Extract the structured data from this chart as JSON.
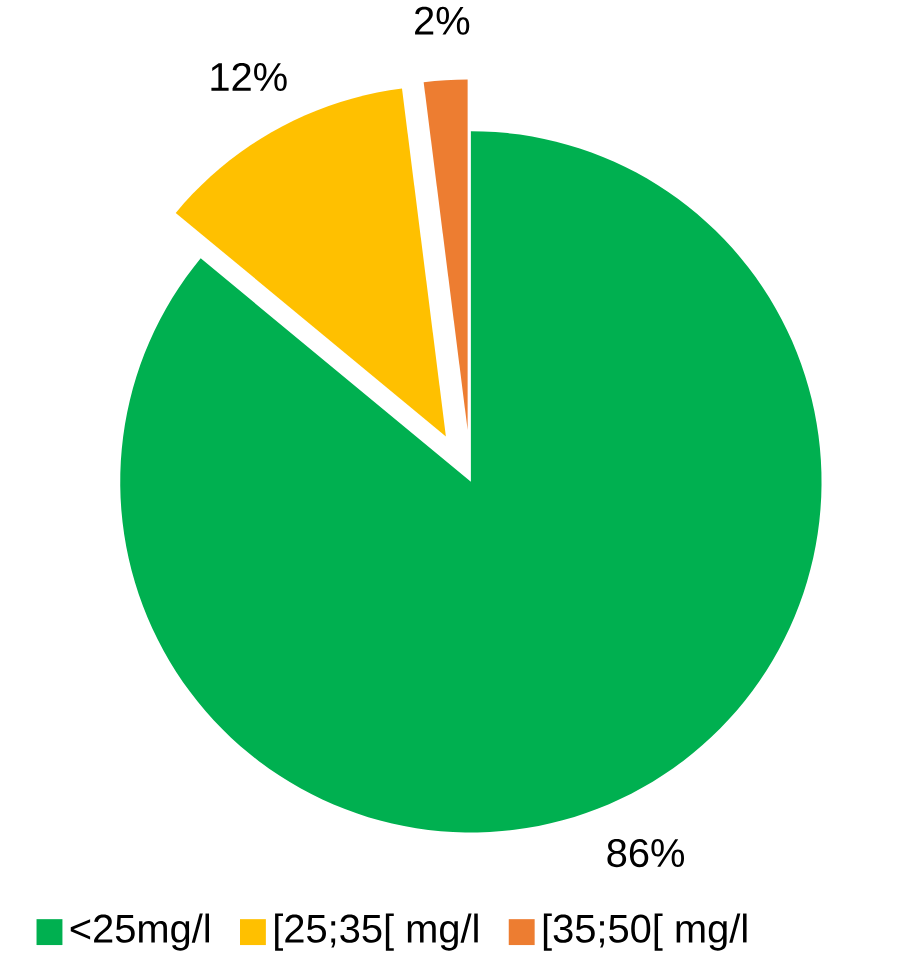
{
  "chart_data": {
    "type": "pie",
    "categories": [
      "<25mg/l",
      "[25;35[ mg/l",
      "[35;50[ mg/l"
    ],
    "values": [
      86,
      12,
      2
    ],
    "value_labels": [
      "86%",
      "12%",
      "2%"
    ],
    "colors": [
      "#00b050",
      "#ffc000",
      "#ed7d31"
    ],
    "legend": "bottom"
  }
}
